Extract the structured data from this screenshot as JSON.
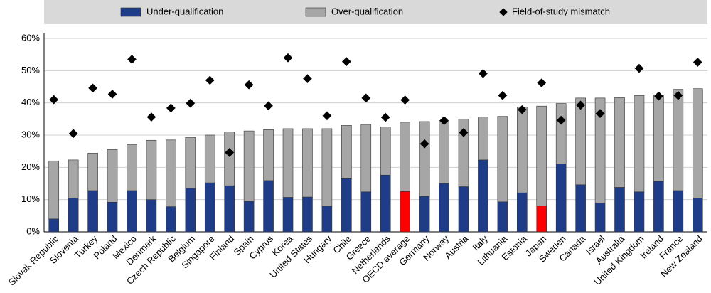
{
  "chart_data": {
    "type": "stacked-bar-scatter",
    "categories": [
      "Slovak Republic",
      "Slovenia",
      "Turkey",
      "Poland",
      "Mexico",
      "Denmark",
      "Czech Republic",
      "Belgium",
      "Singapore",
      "Finland",
      "Spain",
      "Cyprus",
      "Korea",
      "United States",
      "Hungary",
      "Chile",
      "Greece",
      "Netherlands",
      "OECD average",
      "Germany",
      "Norway",
      "Austria",
      "Italy",
      "Lithuania",
      "Estonia",
      "Japan",
      "Sweden",
      "Canada",
      "Israel",
      "Australia",
      "United Kingdom",
      "Ireland",
      "France",
      "New Zealand"
    ],
    "series": [
      {
        "name": "Under-qualification",
        "color": "#1f3c88",
        "kind": "bar",
        "colors": [
          "#1f3c88",
          "#1f3c88",
          "#1f3c88",
          "#1f3c88",
          "#1f3c88",
          "#1f3c88",
          "#1f3c88",
          "#1f3c88",
          "#1f3c88",
          "#1f3c88",
          "#1f3c88",
          "#1f3c88",
          "#1f3c88",
          "#1f3c88",
          "#1f3c88",
          "#1f3c88",
          "#1f3c88",
          "#1f3c88",
          "#ff0000",
          "#1f3c88",
          "#1f3c88",
          "#1f3c88",
          "#1f3c88",
          "#1f3c88",
          "#1f3c88",
          "#ff0000",
          "#1f3c88",
          "#1f3c88",
          "#1f3c88",
          "#1f3c88",
          "#1f3c88",
          "#1f3c88",
          "#1f3c88",
          "#1f3c88"
        ],
        "values": [
          4,
          10.5,
          12.8,
          9.2,
          12.8,
          10,
          7.8,
          13.5,
          15.2,
          14.3,
          9.5,
          15.9,
          10.7,
          10.8,
          8,
          16.7,
          12.4,
          17.6,
          12.5,
          11,
          15,
          14,
          22.3,
          9.3,
          12.1,
          8,
          21.1,
          14.6,
          8.9,
          13.8,
          12.4,
          15.7,
          12.8,
          10.5
        ]
      },
      {
        "name": "Over-qualification",
        "color": "#a6a6a6",
        "kind": "bar",
        "values": [
          18,
          11.8,
          11.6,
          16.3,
          14.3,
          18.4,
          20.7,
          15.8,
          14.8,
          16.7,
          21.8,
          15.8,
          21.3,
          21.2,
          24,
          16.3,
          20.9,
          14.9,
          21.5,
          23.2,
          19.5,
          21,
          13.3,
          26.5,
          26.6,
          31,
          18.7,
          26.9,
          32.6,
          27.8,
          29.9,
          26.8,
          31.4,
          33.9
        ]
      },
      {
        "name": "Field-of-study mismatch",
        "color": "#000000",
        "kind": "marker",
        "values": [
          41,
          30.5,
          44.6,
          42.7,
          53.5,
          35.6,
          38.4,
          39.9,
          47,
          24.6,
          45.6,
          39.1,
          54,
          47.5,
          36,
          52.8,
          41.5,
          35.5,
          40.9,
          27.3,
          34.5,
          30.8,
          49.1,
          42.3,
          37.9,
          46.2,
          34.6,
          39.3,
          36.7,
          null,
          50.7,
          42.1,
          42.3,
          52.6
        ]
      }
    ],
    "ylim": [
      0,
      60
    ],
    "yticks": [
      {
        "value": 0,
        "label": "0%"
      },
      {
        "value": 10,
        "label": "10%"
      },
      {
        "value": 20,
        "label": "20%"
      },
      {
        "value": 30,
        "label": "30%"
      },
      {
        "value": 40,
        "label": "40%"
      },
      {
        "value": 50,
        "label": "50%"
      },
      {
        "value": 60,
        "label": "60%"
      }
    ],
    "grid": true,
    "legend": "top"
  }
}
